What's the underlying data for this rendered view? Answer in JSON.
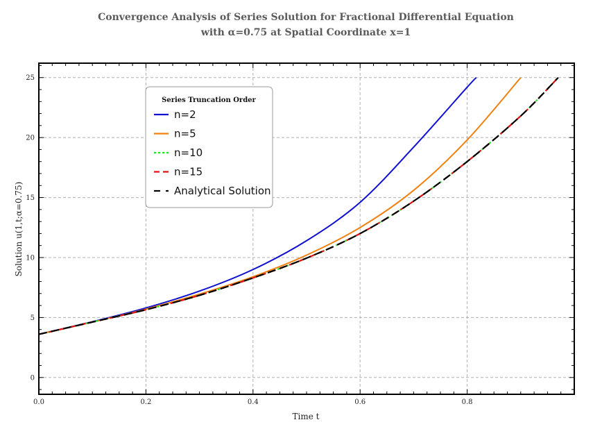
{
  "chart_data": {
    "type": "line",
    "title_line1": "Convergence Analysis of Series Solution for Fractional Differential Equation",
    "title_line2": "with α=0.75 at Spatial Coordinate x=1",
    "xlabel": "Time t",
    "ylabel": "Solution u(1,t;α=0.75)",
    "xlim": [
      0,
      1.0
    ],
    "ylim": [
      -1.4,
      26.2
    ],
    "xticks": [
      0.0,
      0.2,
      0.4,
      0.6,
      0.8
    ],
    "xtick_labels": [
      "0.0",
      "0.2",
      "0.4",
      "0.6",
      "0.8"
    ],
    "yticks": [
      0,
      5,
      10,
      15,
      20,
      25
    ],
    "ytick_labels": [
      "0",
      "5",
      "10",
      "15",
      "20",
      "25"
    ],
    "grid": true,
    "legend_title": "Series Truncation Order",
    "legend_position": "top-left",
    "series": [
      {
        "name": "n=2",
        "color": "#1010d0",
        "dash": "solid",
        "x": [
          0.0,
          0.1,
          0.2,
          0.3,
          0.4,
          0.5,
          0.6,
          0.7,
          0.8,
          0.817
        ],
        "y": [
          3.6,
          4.65,
          5.8,
          7.2,
          9.0,
          11.4,
          14.6,
          19.2,
          24.2,
          25.0
        ]
      },
      {
        "name": "n=5",
        "color": "#f08010",
        "dash": "solid",
        "x": [
          0.0,
          0.1,
          0.2,
          0.3,
          0.4,
          0.5,
          0.6,
          0.7,
          0.8,
          0.9
        ],
        "y": [
          3.6,
          4.62,
          5.7,
          6.95,
          8.4,
          10.2,
          12.5,
          15.6,
          19.8,
          25.0
        ]
      },
      {
        "name": "n=10",
        "color": "#22e022",
        "dash": "dotted",
        "x": [
          0.0,
          0.1,
          0.2,
          0.3,
          0.4,
          0.5,
          0.6,
          0.7,
          0.8,
          0.9,
          0.97
        ],
        "y": [
          3.6,
          4.62,
          5.65,
          6.85,
          8.3,
          9.95,
          12.0,
          14.7,
          18.0,
          21.8,
          25.0
        ]
      },
      {
        "name": "n=15",
        "color": "#e01010",
        "dash": "dashed",
        "x": [
          0.0,
          0.1,
          0.2,
          0.3,
          0.4,
          0.5,
          0.6,
          0.7,
          0.8,
          0.9,
          0.97
        ],
        "y": [
          3.6,
          4.62,
          5.65,
          6.85,
          8.3,
          9.95,
          12.0,
          14.7,
          18.0,
          21.8,
          25.0
        ]
      },
      {
        "name": "Analytical Solution",
        "color": "#000000",
        "dash": "longdash",
        "x": [
          0.0,
          0.1,
          0.2,
          0.3,
          0.4,
          0.5,
          0.6,
          0.7,
          0.8,
          0.9,
          0.97
        ],
        "y": [
          3.6,
          4.62,
          5.65,
          6.85,
          8.3,
          9.95,
          12.0,
          14.7,
          18.0,
          21.8,
          25.0
        ]
      }
    ]
  }
}
